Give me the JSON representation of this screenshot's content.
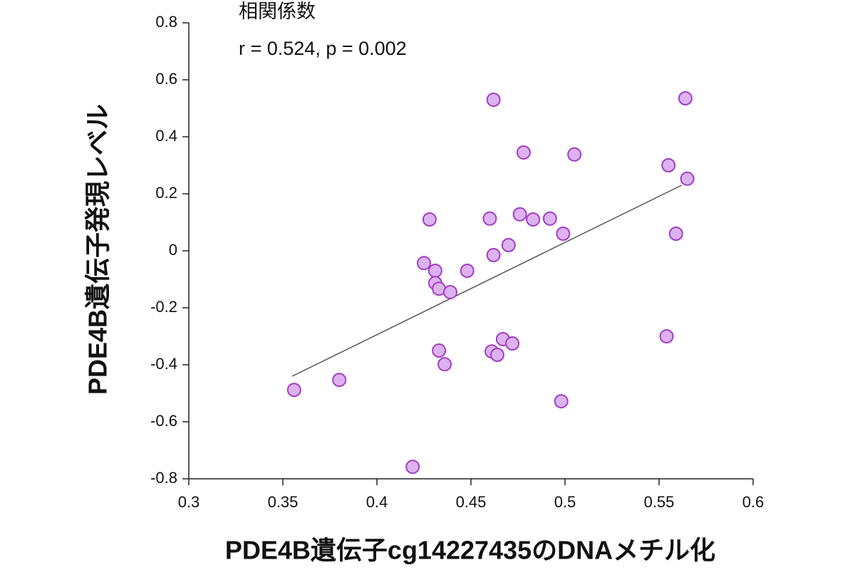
{
  "chart_data": {
    "type": "scatter",
    "annotations": [
      "相関係数",
      "r = 0.524, p = 0.002"
    ],
    "x_label": "PDE4B遺伝子cg14227435のDNAメチル化",
    "y_label": "PDE4B遺伝子発現レベル",
    "xlim": [
      0.3,
      0.6
    ],
    "ylim": [
      -0.8,
      0.8
    ],
    "xticks": [
      0.3,
      0.35,
      0.4,
      0.45,
      0.5,
      0.55,
      0.6
    ],
    "yticks": [
      -0.8,
      -0.6,
      -0.4,
      -0.2,
      0,
      0.2,
      0.4,
      0.6,
      0.8
    ],
    "marker_fill": "#dcb2ef",
    "marker_edge": "#a23fc4",
    "x": [
      0.356,
      0.38,
      0.419,
      0.425,
      0.428,
      0.431,
      0.431,
      0.433,
      0.433,
      0.436,
      0.439,
      0.448,
      0.46,
      0.461,
      0.462,
      0.462,
      0.464,
      0.467,
      0.47,
      0.472,
      0.476,
      0.478,
      0.483,
      0.492,
      0.498,
      0.499,
      0.505,
      0.554,
      0.555,
      0.559,
      0.564,
      0.565
    ],
    "values": [
      -0.488,
      -0.453,
      -0.758,
      -0.043,
      0.11,
      -0.07,
      -0.113,
      -0.133,
      -0.35,
      -0.398,
      -0.145,
      -0.07,
      0.113,
      -0.353,
      0.53,
      -0.015,
      -0.365,
      -0.31,
      0.02,
      -0.325,
      0.128,
      0.345,
      0.11,
      0.113,
      -0.528,
      0.06,
      0.338,
      -0.3,
      0.3,
      0.06,
      0.535,
      0.253
    ],
    "trendline": {
      "x": [
        0.355,
        0.562
      ],
      "y": [
        -0.44,
        0.23
      ],
      "color": "#555555"
    }
  }
}
